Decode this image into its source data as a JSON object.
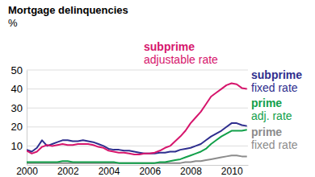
{
  "chart_data": {
    "type": "line",
    "title": "Mortgage delinquencies",
    "ylabel": "%",
    "x": [
      2000,
      2000.25,
      2000.5,
      2000.75,
      2001,
      2001.25,
      2001.5,
      2001.75,
      2002,
      2002.25,
      2002.5,
      2002.75,
      2003,
      2003.25,
      2003.5,
      2003.75,
      2004,
      2004.25,
      2004.5,
      2004.75,
      2005,
      2005.25,
      2005.5,
      2005.75,
      2006,
      2006.25,
      2006.5,
      2006.75,
      2007,
      2007.25,
      2007.5,
      2007.75,
      2008,
      2008.25,
      2008.5,
      2008.75,
      2009,
      2009.25,
      2009.5,
      2009.75,
      2010,
      2010.25,
      2010.5,
      2010.75
    ],
    "xlim": [
      2000,
      2010.8
    ],
    "xticks": [
      2000,
      2002,
      2004,
      2006,
      2008,
      2010
    ],
    "ylim": [
      0,
      50
    ],
    "yticks": [
      10,
      20,
      30,
      40,
      50
    ],
    "grid": true,
    "series": [
      {
        "name": "subprime adjustable rate",
        "color": "#d6156c",
        "values": [
          7.5,
          6,
          7,
          9.5,
          10.5,
          10,
          10.5,
          11,
          10.5,
          10.5,
          11,
          11,
          11,
          10.5,
          9.5,
          9,
          7.5,
          7,
          6.5,
          6.5,
          6,
          5.5,
          5.5,
          6,
          6,
          6.5,
          7.5,
          9,
          10,
          12.5,
          15,
          18,
          22,
          25,
          28,
          32,
          36,
          38,
          40,
          42,
          43,
          42.5,
          40.5,
          40
        ]
      },
      {
        "name": "subprime fixed rate",
        "color": "#2e2e8e",
        "values": [
          8,
          7,
          9,
          13,
          10,
          11,
          12,
          13,
          13,
          12.5,
          12.5,
          13,
          12.5,
          12,
          11,
          10,
          8.5,
          8,
          8,
          7.5,
          7.5,
          7,
          6.5,
          6,
          6,
          6,
          6.5,
          6.5,
          7,
          7,
          8,
          8.5,
          9,
          10,
          11,
          13,
          15,
          16.5,
          18,
          20,
          22,
          22,
          21,
          20.5
        ]
      },
      {
        "name": "prime adj. rate",
        "color": "#12a04a",
        "values": [
          1.5,
          1.5,
          1.5,
          1.5,
          1.5,
          1.5,
          1.5,
          2,
          2,
          1.5,
          1.5,
          1.5,
          1.5,
          1.5,
          1.5,
          1.5,
          1.5,
          1.5,
          1,
          1,
          1,
          1,
          1,
          1,
          1,
          1,
          1.5,
          1.5,
          2,
          2.5,
          3,
          4,
          5,
          6,
          7,
          8.5,
          11,
          13,
          15,
          16.5,
          18,
          18,
          18,
          18.5
        ]
      },
      {
        "name": "prime fixed rate",
        "color": "#8c8c8c",
        "values": [
          1,
          1,
          1,
          1,
          1,
          1,
          1,
          1,
          1,
          1,
          1,
          1,
          1,
          1,
          1,
          1,
          1,
          1,
          1,
          1,
          1,
          1,
          1,
          1,
          1,
          1,
          1,
          1,
          1,
          1,
          1,
          1.5,
          1.5,
          2,
          2,
          2.5,
          3,
          3.5,
          4,
          4.5,
          5,
          5,
          4.5,
          4.5
        ]
      }
    ]
  }
}
